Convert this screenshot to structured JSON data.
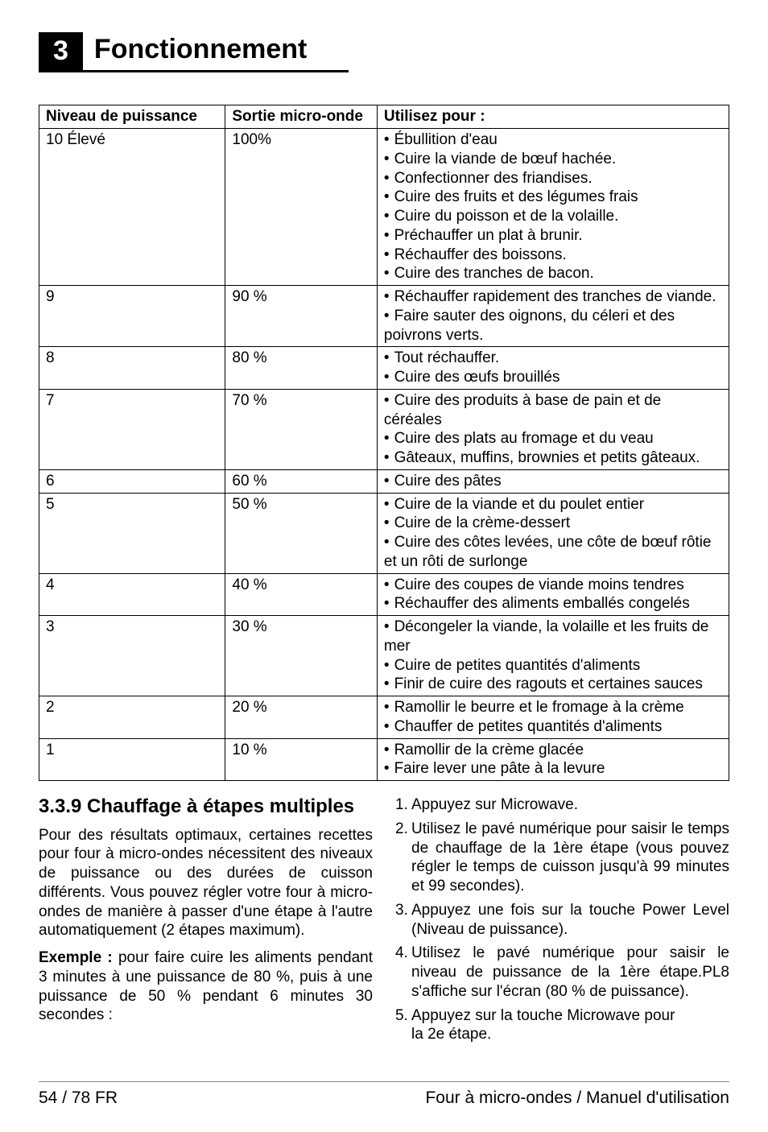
{
  "chapter": {
    "number": "3",
    "title": "Fonctionnement"
  },
  "table": {
    "headers": [
      "Niveau de puissance",
      "Sortie micro-onde",
      "Utilisez pour :"
    ],
    "rows": [
      {
        "c0": "10 Élevé",
        "c1": "100%",
        "bullets": [
          "Ébullition d'eau",
          "Cuire la viande de bœuf hachée.",
          "Confectionner des friandises.",
          "Cuire des fruits et des légumes frais",
          "Cuire du poisson et de la volaille.",
          "Préchauffer un plat à brunir.",
          "Réchauffer des boissons.",
          "Cuire des tranches de bacon."
        ]
      },
      {
        "c0": "9",
        "c1": "90 %",
        "bullets": [
          "Réchauffer rapidement des tranches de viande.",
          "Faire sauter des oignons, du céleri et des poivrons verts."
        ],
        "indent": [
          false,
          true
        ]
      },
      {
        "c0": "8",
        "c1": "80 %",
        "bullets": [
          "Tout réchauffer.",
          "Cuire des œufs brouillés"
        ]
      },
      {
        "c0": "7",
        "c1": "70 %",
        "bullets": [
          "Cuire des produits à base de pain et de céréales",
          "Cuire des plats au fromage et du veau",
          "Gâteaux, muffins, brownies et petits gâteaux."
        ]
      },
      {
        "c0": "6",
        "c1": "60 %",
        "bullets": [
          "Cuire des pâtes"
        ]
      },
      {
        "c0": "5",
        "c1": "50 %",
        "bullets": [
          "Cuire de la viande et du poulet entier",
          "Cuire de la crème-dessert",
          "Cuire des côtes levées, une côte de bœuf rôtie et un rôti de surlonge"
        ],
        "indent": [
          false,
          false,
          true
        ]
      },
      {
        "c0": "4",
        "c1": "40 %",
        "bullets": [
          "Cuire des coupes de viande moins tendres",
          "Réchauffer des aliments emballés congelés"
        ]
      },
      {
        "c0": "3",
        "c1": "30 %",
        "bullets": [
          "Décongeler la viande, la volaille et les fruits de mer",
          "Cuire de petites quantités d'aliments",
          "Finir de cuire des ragouts et certaines sauces"
        ]
      },
      {
        "c0": "2",
        "c1": "20 %",
        "bullets": [
          "Ramollir le beurre et le fromage à la crème",
          "Chauffer de petites quantités d'aliments"
        ]
      },
      {
        "c0": "1",
        "c1": "10 %",
        "bullets": [
          "Ramollir de la crème glacée",
          "Faire lever une pâte à la levure"
        ]
      }
    ]
  },
  "section": {
    "heading": "3.3.9 Chauffage à étapes multiples",
    "para1": "Pour des résultats optimaux, certaines recettes pour four à micro-ondes nécessitent des niveaux de puissance ou des durées de cuisson différents. Vous pouvez régler votre four à micro-ondes de manière à passer d'une étape à l'autre automati­quement (2 étapes maximum).",
    "exampleLabel": "Exemple :",
    "exampleText": " pour faire cuire les aliments pen­dant 3 minutes à une puissance de 80 %, puis à une puissance de 50 % pendant 6 minutes 30 secondes :"
  },
  "steps": {
    "s1a": "Appuyez sur ",
    "s1b": "Microwave.",
    "s2": "Utilisez le pavé numérique pour saisir le temps de chauffage de la 1ère étape (vous pouvez régler le temps de cuisson jusqu'à 99 minutes et 99 secondes).",
    "s3a": "Appuyez une fois sur la touche ",
    "s3b": "Power Level",
    "s3c": " (Niveau de puissance).",
    "s4": "Utilisez le pavé numérique pour saisir le niveau de puissance de la 1ère étape.PL8 s'affiche sur l'écran (80 % de puissance).",
    "s5a": "Appuyez sur la touche ",
    "s5b": "Microwave",
    "s5c": " pour",
    "s5d": "la 2e étape."
  },
  "footer": {
    "left": "54 / 78 FR",
    "right": "Four à micro-ondes / Manuel d'utilisation"
  }
}
